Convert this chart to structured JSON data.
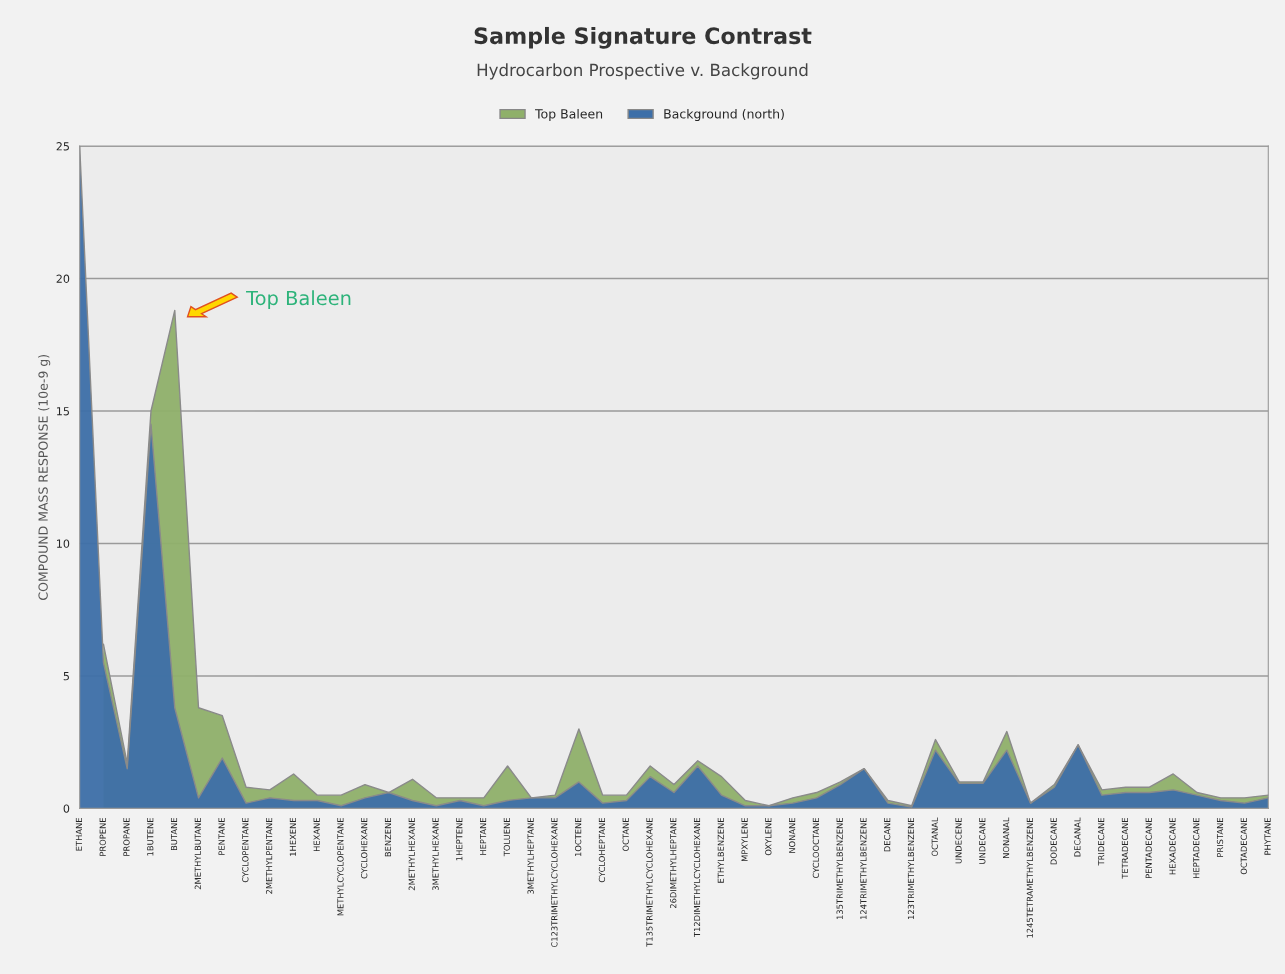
{
  "chart_data": {
    "type": "area",
    "title": "Sample Signature Contrast",
    "subtitle": "Hydrocarbon Prospective v. Background",
    "ylabel": "COMPOUND MASS RESPONSE (10e-9 g)",
    "categories": [
      "ETHANE",
      "PROPENE",
      "PROPANE",
      "1BUTENE",
      "BUTANE",
      "2METHYLBUTANE",
      "PENTANE",
      "CYCLOPENTANE",
      "2METHYLPENTANE",
      "1HEXENE",
      "HEXANE",
      "METHYLCYCLOPENTANE",
      "CYCLOHEXANE",
      "BENZENE",
      "2METHYLHEXANE",
      "3METHYLHEXANE",
      "1HEPTENE",
      "HEPTANE",
      "TOLUENE",
      "3METHYLHEPTANE",
      "C123TRIMETHYLCYCLOHEXANE",
      "1OCTENE",
      "CYCLOHEPTANE",
      "OCTANE",
      "T135TRIMETHYLCYCLOHEXANE",
      "26DIMETHYLHEPTANE",
      "T12DIMETHYLCYCLOHEXANE",
      "ETHYLBENZENE",
      "MPXYLENE",
      "OXYLENE",
      "NONANE",
      "CYCLOOCTANE",
      "135TRIMETHYLBENZENE",
      "124TRIMETHYLBENZENE",
      "DECANE",
      "123TRIMETHYLBENZENE",
      "OCTANAL",
      "UNDECENE",
      "UNDECANE",
      "NONANAL",
      "1245TETRAMETHYLBENZENE",
      "DODECANE",
      "DECANAL",
      "TRIDECANE",
      "TETRADECANE",
      "PENTADECANE",
      "HEXADECANE",
      "HEPTADECANE",
      "PRISTANE",
      "OCTADECANE",
      "PHYTANE"
    ],
    "series": [
      {
        "name": "Top Baleen",
        "color": "#8fb06a",
        "values": [
          null,
          6.2,
          1.7,
          15,
          18.8,
          3.8,
          3.5,
          0.8,
          0.7,
          1.3,
          0.5,
          0.5,
          0.9,
          0.6,
          1.1,
          0.4,
          0.4,
          0.4,
          1.6,
          0.4,
          0.5,
          3.0,
          0.5,
          0.5,
          1.6,
          0.9,
          1.8,
          1.2,
          0.3,
          0.1,
          0.4,
          0.6,
          1.0,
          1.5,
          0.3,
          0.1,
          2.6,
          1.0,
          1.0,
          2.9,
          0.2,
          0.9,
          2.4,
          0.7,
          0.8,
          0.8,
          1.3,
          0.6,
          0.4,
          0.4,
          0.5
        ]
      },
      {
        "name": "Background (north)",
        "color": "#3d6fa8",
        "values": [
          25,
          5.5,
          1.5,
          14.5,
          3.8,
          0.4,
          1.9,
          0.2,
          0.4,
          0.3,
          0.3,
          0.1,
          0.4,
          0.6,
          0.3,
          0.1,
          0.3,
          0.1,
          0.3,
          0.4,
          0.4,
          1.0,
          0.2,
          0.3,
          1.2,
          0.6,
          1.6,
          0.5,
          0.1,
          0.1,
          0.2,
          0.4,
          0.9,
          1.5,
          0.2,
          0.05,
          2.2,
          0.95,
          0.95,
          2.2,
          0.2,
          0.8,
          2.4,
          0.5,
          0.6,
          0.6,
          0.7,
          0.5,
          0.3,
          0.2,
          0.4
        ]
      }
    ],
    "ylim": [
      0,
      25
    ],
    "yticks": [
      0,
      5,
      10,
      15,
      20,
      25
    ],
    "grid": "y",
    "legend": "top",
    "annotations": [
      "Top Baleen"
    ]
  }
}
